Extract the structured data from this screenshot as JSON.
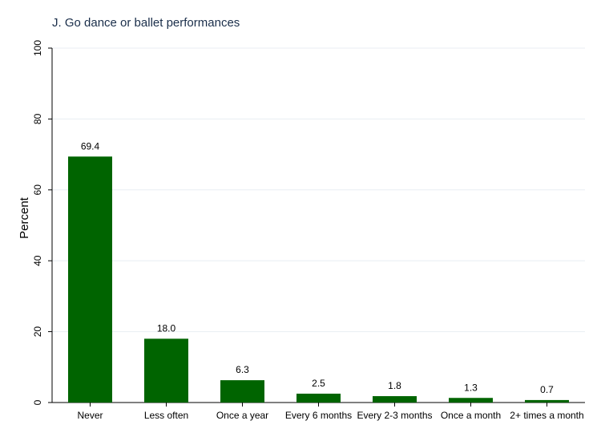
{
  "chart_data": {
    "type": "bar",
    "title": "J. Go dance or ballet performances",
    "xlabel": "",
    "ylabel": "Percent",
    "categories": [
      "Never",
      "Less often",
      "Once a year",
      "Every 6 months",
      "Every 2-3 months",
      "Once a month",
      "2+ times a month"
    ],
    "values": [
      69.4,
      18.0,
      6.3,
      2.5,
      1.8,
      1.3,
      0.7
    ],
    "value_labels": [
      "69.4",
      "18.0",
      "6.3",
      "2.5",
      "1.8",
      "1.3",
      "0.7"
    ],
    "ylim": [
      0,
      100
    ],
    "yticks": [
      0,
      20,
      40,
      60,
      80,
      100
    ],
    "ytick_labels": [
      "0",
      "20",
      "40",
      "60",
      "80",
      "100"
    ],
    "grid": true,
    "legend": "none",
    "colors": {
      "bar": "#006400",
      "grid": "#e8eef3",
      "axis": "#000000",
      "text": "#000000",
      "title": "#1a2e4a"
    }
  }
}
